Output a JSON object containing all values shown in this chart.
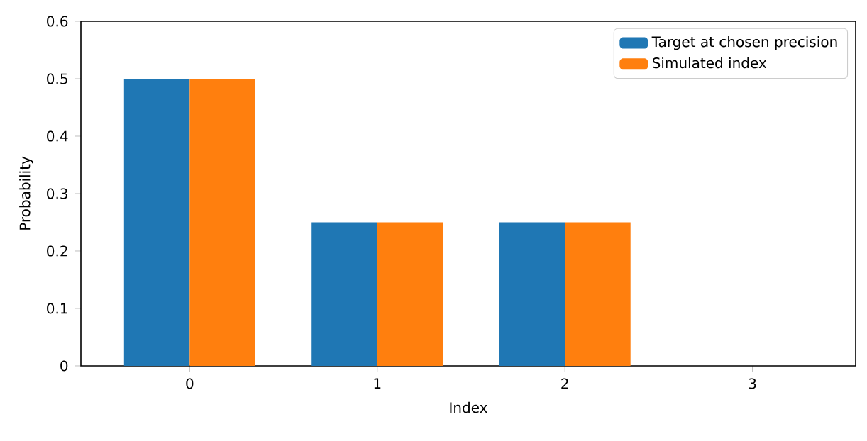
{
  "chart_data": {
    "type": "bar",
    "xlabel": "Index",
    "ylabel": "Probability",
    "categories": [
      "0",
      "1",
      "2",
      "3"
    ],
    "series": [
      {
        "name": "Target at chosen precision",
        "color": "#1f77b4",
        "values": [
          0.5,
          0.25,
          0.25,
          0
        ]
      },
      {
        "name": "Simulated index",
        "color": "#ff7f0e",
        "values": [
          0.5,
          0.25,
          0.25,
          0
        ]
      }
    ],
    "ylim": [
      0,
      0.6
    ],
    "yticks": [
      0,
      0.1,
      0.2,
      0.3,
      0.4,
      0.5,
      0.6
    ],
    "legend": "top right"
  }
}
